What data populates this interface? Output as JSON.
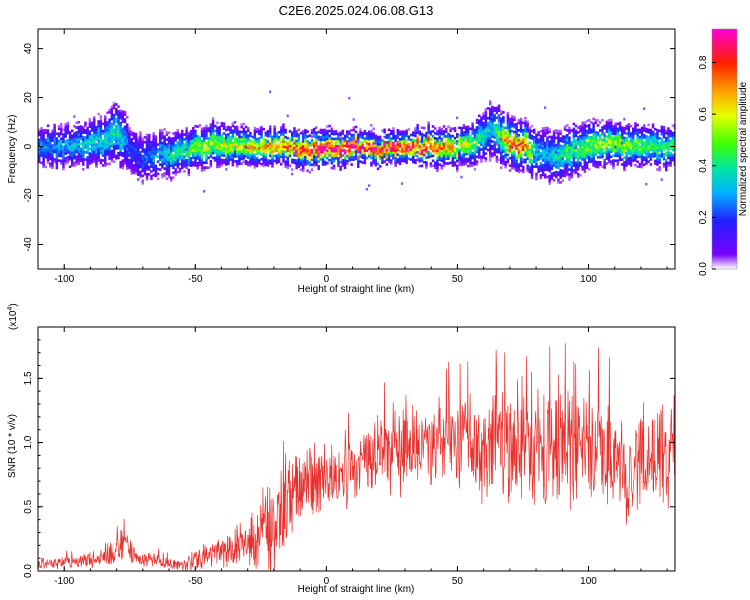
{
  "title": "C2E6.2025.024.06.08.G13",
  "chart_data": [
    {
      "type": "heatmap",
      "xlabel": "Height of straight line (km)",
      "ylabel": "Frequency (Hz)",
      "xlim": [
        -110,
        133
      ],
      "ylim": [
        -50,
        48
      ],
      "xticks": [
        -100,
        -50,
        0,
        50,
        100
      ],
      "yticks": [
        -40,
        -20,
        0,
        20,
        40
      ],
      "xtick_labels": [
        "-100",
        "-50",
        "0",
        "50",
        "100"
      ],
      "ytick_labels": [
        "-40",
        "-20",
        "0",
        "20",
        "40"
      ],
      "colorbar": {
        "label": "Normalized spectral amplitude",
        "range": [
          0,
          0.93
        ],
        "ticks": [
          0.0,
          0.2,
          0.4,
          0.6,
          0.8
        ],
        "tick_labels": [
          "0.0",
          "0.2",
          "0.4",
          "0.6",
          "0.8"
        ]
      },
      "ridge": {
        "x": [
          -110,
          -100,
          -90,
          -85,
          -80,
          -78,
          -75,
          -70,
          -65,
          -60,
          -55,
          -50,
          -40,
          -30,
          -20,
          -10,
          0,
          10,
          20,
          30,
          40,
          50,
          55,
          60,
          63,
          67,
          70,
          75,
          80,
          85,
          90,
          100,
          110,
          120,
          133
        ],
        "frequency": [
          0,
          0,
          1,
          3,
          6,
          4,
          -2,
          -5,
          -4,
          -3,
          -2,
          0,
          1,
          0,
          0,
          -1,
          0,
          0,
          -1,
          0,
          0,
          0,
          1,
          5,
          7,
          3,
          1,
          0,
          -3,
          -4,
          -2,
          0,
          1,
          0,
          0
        ],
        "amplitude": [
          0.25,
          0.3,
          0.35,
          0.35,
          0.4,
          0.3,
          0.2,
          0.2,
          0.3,
          0.35,
          0.4,
          0.5,
          0.55,
          0.6,
          0.65,
          0.8,
          0.85,
          0.9,
          0.8,
          0.85,
          0.75,
          0.6,
          0.5,
          0.35,
          0.3,
          0.55,
          0.8,
          0.7,
          0.3,
          0.3,
          0.4,
          0.5,
          0.55,
          0.45,
          0.4
        ],
        "spread_hz": [
          8,
          8,
          9,
          10,
          12,
          12,
          10,
          10,
          9,
          9,
          8,
          8,
          8,
          7,
          7,
          7,
          7,
          6,
          6,
          6,
          7,
          7,
          8,
          10,
          12,
          10,
          9,
          9,
          10,
          11,
          10,
          9,
          8,
          8,
          8
        ]
      }
    },
    {
      "type": "line",
      "xlabel": "Height of straight line (km)",
      "ylabel": "SNR (10 * v/v)",
      "scale_label": "(x10",
      "scale_exponent": "4",
      "scale_suffix": ")",
      "xlim": [
        -110,
        133
      ],
      "ylim": [
        0,
        1.9
      ],
      "xticks": [
        -100,
        -50,
        0,
        50,
        100
      ],
      "yticks": [
        0.0,
        0.5,
        1.0,
        1.5
      ],
      "xtick_labels": [
        "-100",
        "-50",
        "0",
        "50",
        "100"
      ],
      "ytick_labels": [
        "0.0",
        "0.5",
        "1.0",
        "1.5"
      ],
      "color": "#e8302d",
      "envelope": {
        "x": [
          -110,
          -100,
          -90,
          -85,
          -80,
          -78,
          -75,
          -70,
          -60,
          -55,
          -50,
          -40,
          -30,
          -25,
          -20,
          -17,
          -15,
          -12,
          -10,
          -5,
          0,
          5,
          10,
          15,
          20,
          30,
          40,
          50,
          60,
          70,
          80,
          90,
          100,
          110,
          112,
          114,
          120,
          133
        ],
        "mean": [
          0.05,
          0.07,
          0.09,
          0.1,
          0.15,
          0.2,
          0.15,
          0.1,
          0.06,
          0.05,
          0.08,
          0.14,
          0.22,
          0.28,
          0.35,
          0.42,
          0.55,
          0.6,
          0.62,
          0.68,
          0.7,
          0.72,
          0.78,
          0.85,
          0.9,
          0.95,
          1.0,
          1.0,
          0.95,
          0.95,
          0.93,
          0.95,
          0.95,
          0.95,
          0.85,
          0.7,
          0.95,
          0.9
        ],
        "amp": [
          0.05,
          0.05,
          0.07,
          0.08,
          0.12,
          0.15,
          0.1,
          0.07,
          0.05,
          0.05,
          0.08,
          0.12,
          0.2,
          0.3,
          0.45,
          0.55,
          0.45,
          0.4,
          0.35,
          0.3,
          0.28,
          0.3,
          0.3,
          0.3,
          0.3,
          0.35,
          0.35,
          0.35,
          0.45,
          0.45,
          0.45,
          0.5,
          0.45,
          0.5,
          0.5,
          0.4,
          0.4,
          0.4
        ]
      }
    }
  ]
}
